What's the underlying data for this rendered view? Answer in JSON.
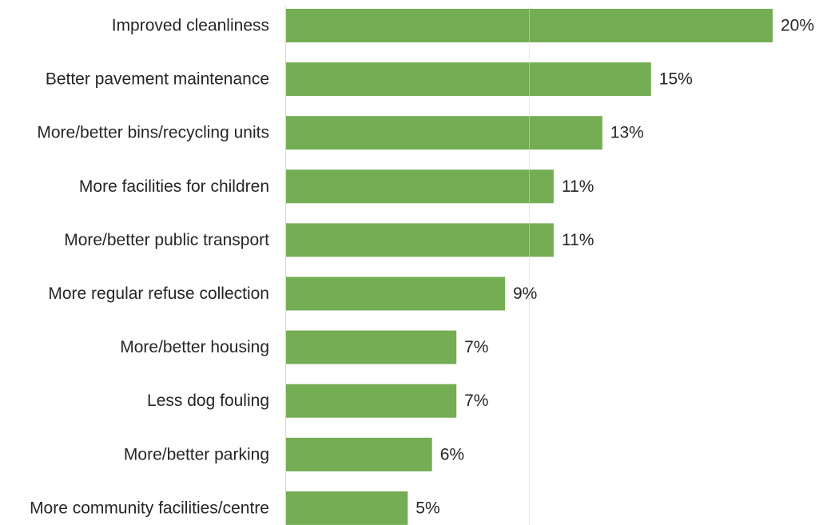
{
  "chart_data": {
    "type": "bar",
    "orientation": "horizontal",
    "categories": [
      "Improved cleanliness",
      "Better pavement maintenance",
      "More/better bins/recycling units",
      "More facilities for children",
      "More/better public transport",
      "More regular refuse collection",
      "More/better housing",
      "Less dog fouling",
      "More/better parking",
      "More community facilities/centre"
    ],
    "values": [
      20,
      15,
      13,
      11,
      11,
      9,
      7,
      7,
      6,
      5
    ],
    "value_labels": [
      "20%",
      "15%",
      "13%",
      "11%",
      "11%",
      "9%",
      "7%",
      "7%",
      "6%",
      "5%"
    ],
    "unit": "%",
    "xlim": [
      0,
      20
    ],
    "grid": true,
    "bar_color": "#74ad54",
    "gridline_color": "#d9d9d9",
    "axis_color": "#d9d9d9",
    "text_color": "#262626"
  }
}
